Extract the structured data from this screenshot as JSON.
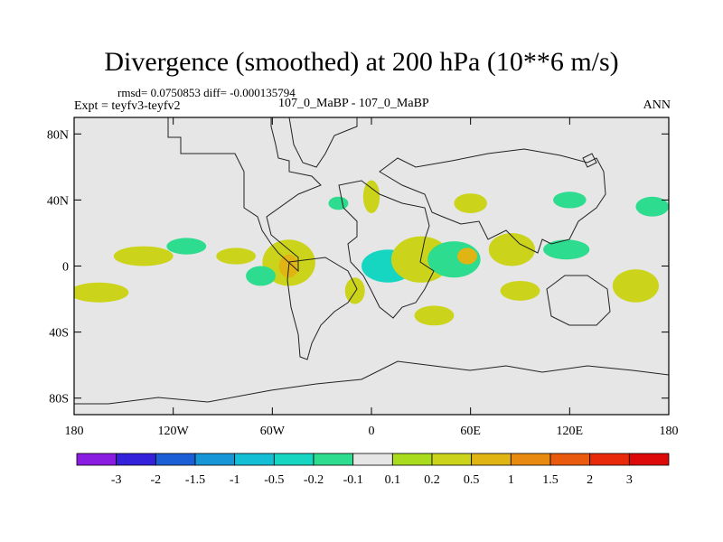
{
  "title": "Divergence (smoothed) at 200 hPa (10**6 m/s)",
  "stats": "rmsd= 0.0750853 diff= -0.000135794",
  "expt": "Expt = teyfv3-teyfv2",
  "case_label": "107_0_MaBP - 107_0_MaBP",
  "season": "ANN",
  "chart_data": {
    "type": "heatmap",
    "projection": "cylindrical-equidistant",
    "lon_range": [
      -180,
      180
    ],
    "lat_range": [
      -90,
      90
    ],
    "x_ticks": [
      {
        "value": -180,
        "label": "180"
      },
      {
        "value": -120,
        "label": "120W"
      },
      {
        "value": -60,
        "label": "60W"
      },
      {
        "value": 0,
        "label": "0"
      },
      {
        "value": 60,
        "label": "60E"
      },
      {
        "value": 120,
        "label": "120E"
      },
      {
        "value": 180,
        "label": "180"
      }
    ],
    "y_ticks": [
      {
        "value": 80,
        "label": "80N"
      },
      {
        "value": 40,
        "label": "40N"
      },
      {
        "value": 0,
        "label": "0"
      },
      {
        "value": -40,
        "label": "40S"
      },
      {
        "value": -80,
        "label": "80S"
      }
    ],
    "colorbar": {
      "labels": [
        "-3",
        "-2",
        "-1.5",
        "-1",
        "-0.5",
        "-0.2",
        "-0.1",
        "0.1",
        "0.2",
        "0.5",
        "1",
        "1.5",
        "2",
        "3"
      ],
      "colors": [
        "#8a1be0",
        "#3322d9",
        "#1a5fd6",
        "#1696d6",
        "#14bfd6",
        "#16d6c2",
        "#2ddc8e",
        "#e6e6e6",
        "#a8dc1c",
        "#cbd41a",
        "#e0b412",
        "#e88a10",
        "#ea5a0e",
        "#e82a0a",
        "#dd0808"
      ]
    },
    "background_color": "#e6e6e6",
    "features": [
      {
        "name": "tropical-pacific-positive",
        "lon": -138,
        "lat": 6,
        "rx": 18,
        "ry": 6,
        "level": "0.2"
      },
      {
        "name": "central-pacific-negative",
        "lon": -112,
        "lat": 12,
        "rx": 12,
        "ry": 5,
        "level": "-0.1"
      },
      {
        "name": "east-pacific-positive",
        "lon": -82,
        "lat": 6,
        "rx": 12,
        "ry": 5,
        "level": "0.2"
      },
      {
        "name": "amazon-positive",
        "lon": -50,
        "lat": 2,
        "rx": 16,
        "ry": 14,
        "level": "0.2"
      },
      {
        "name": "amazon-core",
        "lon": -50,
        "lat": 0,
        "rx": 6,
        "ry": 7,
        "level": "0.5"
      },
      {
        "name": "atlantic-negative",
        "lon": -67,
        "lat": -6,
        "rx": 9,
        "ry": 6,
        "level": "-0.1"
      },
      {
        "name": "africa-negative",
        "lon": 10,
        "lat": 0,
        "rx": 16,
        "ry": 10,
        "level": "-0.2"
      },
      {
        "name": "africa-positive",
        "lon": 30,
        "lat": 4,
        "rx": 18,
        "ry": 14,
        "level": "0.2"
      },
      {
        "name": "indian-negative",
        "lon": 50,
        "lat": 4,
        "rx": 16,
        "ry": 11,
        "level": "-0.1"
      },
      {
        "name": "indian-core",
        "lon": 58,
        "lat": 6,
        "rx": 6,
        "ry": 5,
        "level": "0.5"
      },
      {
        "name": "india-positive",
        "lon": 85,
        "lat": 10,
        "rx": 14,
        "ry": 10,
        "level": "0.2"
      },
      {
        "name": "maritime-negative",
        "lon": 118,
        "lat": 10,
        "rx": 14,
        "ry": 6,
        "level": "-0.1"
      },
      {
        "name": "europe-positive",
        "lon": 0,
        "lat": 42,
        "rx": 5,
        "ry": 10,
        "level": "0.2"
      },
      {
        "name": "asia-positive",
        "lon": 60,
        "lat": 38,
        "rx": 10,
        "ry": 6,
        "level": "0.2"
      },
      {
        "name": "east-asia-negative",
        "lon": 120,
        "lat": 40,
        "rx": 10,
        "ry": 5,
        "level": "-0.1"
      },
      {
        "name": "pacific-nw-negative",
        "lon": 170,
        "lat": 36,
        "rx": 10,
        "ry": 6,
        "level": "-0.1"
      },
      {
        "name": "south-pacific-positive",
        "lon": -165,
        "lat": -16,
        "rx": 18,
        "ry": 6,
        "level": "0.2"
      },
      {
        "name": "southern-africa-positive",
        "lon": 38,
        "lat": -30,
        "rx": 12,
        "ry": 6,
        "level": "0.2"
      },
      {
        "name": "south-indian-positive",
        "lon": 90,
        "lat": -15,
        "rx": 12,
        "ry": 6,
        "level": "0.2"
      },
      {
        "name": "australia-positive",
        "lon": 160,
        "lat": -12,
        "rx": 14,
        "ry": 10,
        "level": "0.2"
      },
      {
        "name": "south-atlantic-positive",
        "lon": -10,
        "lat": -15,
        "rx": 6,
        "ry": 8,
        "level": "0.2"
      },
      {
        "name": "north-atlantic-negative",
        "lon": -20,
        "lat": 38,
        "rx": 6,
        "ry": 4,
        "level": "-0.1"
      }
    ]
  }
}
